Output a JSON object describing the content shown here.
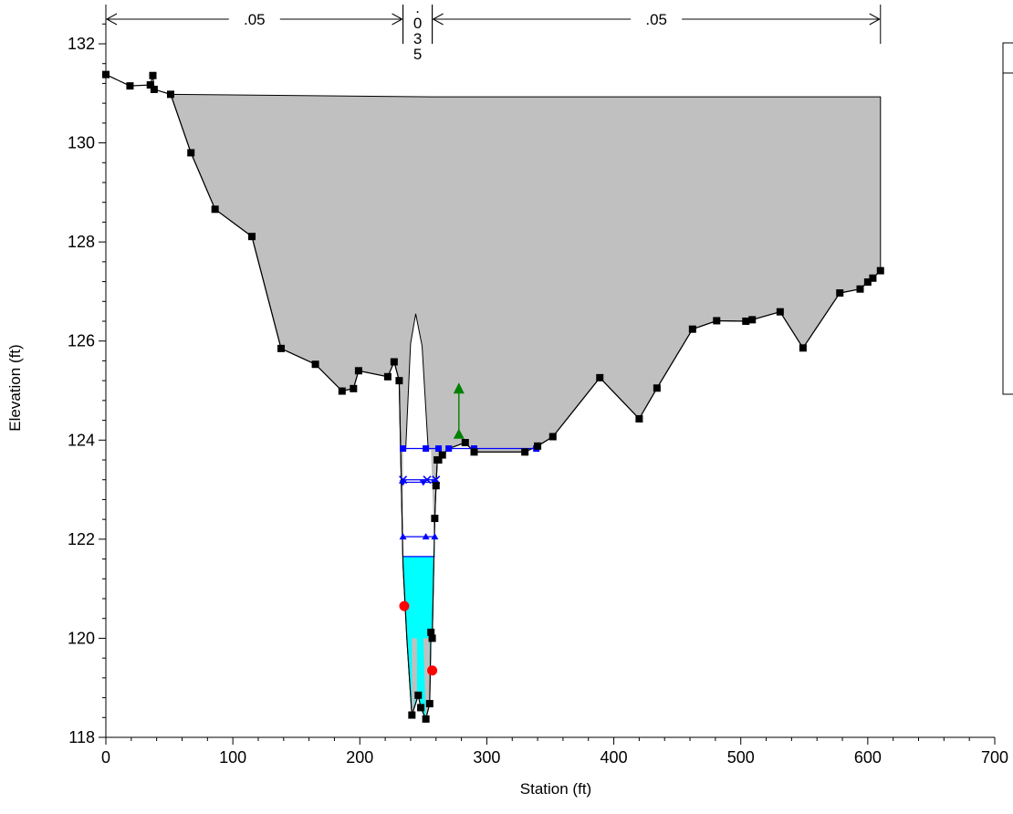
{
  "chart_data": {
    "type": "line",
    "title": "",
    "xlabel": "Station (ft)",
    "ylabel": "Elevation (ft)",
    "xlim": [
      0,
      700
    ],
    "ylim": [
      118,
      132.5
    ],
    "x_ticks": [
      "0",
      "100",
      "200",
      "300",
      "400",
      "500",
      "600",
      "700"
    ],
    "y_ticks": [
      "118",
      "120",
      "122",
      "124",
      "126",
      "128",
      "130",
      "132"
    ],
    "grid": false,
    "legend": "right (partially visible)",
    "colors": {
      "ground": "#000000",
      "ineffective_area": "#c0c0c0",
      "water": "#00ffff",
      "levels": "#0000ff",
      "bank_station": "#ff0000",
      "levee": "#008000"
    },
    "manning_n": [
      {
        "label": ".05",
        "x_from": 0,
        "x_to": 234
      },
      {
        "label": ". 0 3 5",
        "x_from": 234,
        "x_to": 257
      },
      {
        "label": ".05",
        "x_from": 257,
        "x_to": 610
      }
    ],
    "ground": [
      [
        0,
        131.38
      ],
      [
        19,
        131.15
      ],
      [
        35,
        131.17
      ],
      [
        37,
        131.36
      ],
      [
        38,
        131.08
      ],
      [
        51,
        130.98
      ],
      [
        67,
        129.8
      ],
      [
        86,
        128.66
      ],
      [
        115,
        128.11
      ],
      [
        138,
        125.85
      ],
      [
        165,
        125.53
      ],
      [
        186,
        124.99
      ],
      [
        195,
        125.04
      ],
      [
        199,
        125.4
      ],
      [
        222,
        125.28
      ],
      [
        227,
        125.58
      ],
      [
        231,
        125.2
      ],
      [
        234,
        121.5
      ],
      [
        237,
        120.0
      ],
      [
        241,
        118.45
      ],
      [
        246,
        118.85
      ],
      [
        248,
        118.6
      ],
      [
        252,
        118.37
      ],
      [
        255,
        118.68
      ],
      [
        256,
        120.12
      ],
      [
        257,
        120.0
      ],
      [
        259,
        122.42
      ],
      [
        260,
        123.08
      ],
      [
        261,
        123.6
      ],
      [
        262,
        123.6
      ],
      [
        265,
        123.7
      ],
      [
        270,
        123.83
      ],
      [
        283,
        123.95
      ],
      [
        290,
        123.76
      ],
      [
        330,
        123.76
      ],
      [
        340,
        123.88
      ],
      [
        352,
        124.07
      ],
      [
        389,
        125.26
      ],
      [
        420,
        124.43
      ],
      [
        434,
        125.05
      ],
      [
        462,
        126.24
      ],
      [
        481,
        126.41
      ],
      [
        504,
        126.4
      ],
      [
        509,
        126.43
      ],
      [
        531,
        126.59
      ],
      [
        549,
        125.86
      ],
      [
        578,
        126.97
      ],
      [
        594,
        127.05
      ],
      [
        600,
        127.19
      ],
      [
        604,
        127.27
      ],
      [
        610,
        127.42
      ]
    ],
    "ineffective_area": [
      [
        51,
        130.98
      ],
      [
        257,
        130.93
      ],
      [
        610,
        130.93
      ],
      [
        610,
        127.42
      ]
    ],
    "ground_points": [
      [
        0,
        131.38
      ],
      [
        19,
        131.15
      ],
      [
        35,
        131.17
      ],
      [
        37,
        131.36
      ],
      [
        38,
        131.08
      ],
      [
        51,
        130.98
      ],
      [
        67,
        129.8
      ],
      [
        86,
        128.66
      ],
      [
        115,
        128.11
      ],
      [
        138,
        125.85
      ],
      [
        165,
        125.53
      ],
      [
        186,
        124.99
      ],
      [
        195,
        125.04
      ],
      [
        199,
        125.4
      ],
      [
        222,
        125.28
      ],
      [
        227,
        125.58
      ],
      [
        231,
        125.2
      ],
      [
        241,
        118.45
      ],
      [
        246,
        118.85
      ],
      [
        248,
        118.6
      ],
      [
        252,
        118.37
      ],
      [
        255,
        118.68
      ],
      [
        256,
        120.12
      ],
      [
        257,
        120.0
      ],
      [
        259,
        122.42
      ],
      [
        260,
        123.08
      ],
      [
        261,
        123.6
      ],
      [
        262,
        123.6
      ],
      [
        265,
        123.7
      ],
      [
        283,
        123.95
      ],
      [
        290,
        123.76
      ],
      [
        330,
        123.76
      ],
      [
        340,
        123.88
      ],
      [
        352,
        124.07
      ],
      [
        389,
        125.26
      ],
      [
        420,
        124.43
      ],
      [
        434,
        125.05
      ],
      [
        462,
        126.24
      ],
      [
        481,
        126.41
      ],
      [
        504,
        126.4
      ],
      [
        509,
        126.43
      ],
      [
        531,
        126.59
      ],
      [
        549,
        125.86
      ],
      [
        578,
        126.97
      ],
      [
        594,
        127.05
      ],
      [
        600,
        127.19
      ],
      [
        604,
        127.27
      ],
      [
        610,
        127.42
      ]
    ],
    "water_surface": {
      "elevation": 121.65,
      "x_from": 234,
      "x_to": 259
    },
    "bank_stations": [
      [
        235,
        120.65
      ],
      [
        257,
        119.35
      ]
    ],
    "levee": {
      "x": 278,
      "top": 125.05,
      "base": 124.12
    },
    "blue_levels": [
      {
        "elevation": 123.83,
        "marker": "square",
        "segments": [
          [
            234,
            262
          ],
          [
            270,
            290
          ],
          [
            290,
            339
          ]
        ],
        "points": [
          234,
          252,
          262,
          270,
          290,
          339
        ]
      },
      {
        "elevation": 123.2,
        "marker": "x",
        "segments": [
          [
            234,
            260
          ]
        ],
        "points": [
          234,
          253,
          260
        ]
      },
      {
        "elevation": 123.15,
        "marker": "triangle-down",
        "segments": [
          [
            234,
            260
          ]
        ],
        "points": [
          234,
          250,
          259
        ]
      },
      {
        "elevation": 122.05,
        "marker": "triangle-up",
        "segments": [
          [
            234,
            260
          ]
        ],
        "points": [
          234,
          252,
          259
        ]
      }
    ],
    "center_spike": [
      [
        236,
        123.75
      ],
      [
        240,
        125.95
      ],
      [
        244,
        126.55
      ],
      [
        249,
        125.9
      ],
      [
        254,
        123.75
      ]
    ]
  }
}
